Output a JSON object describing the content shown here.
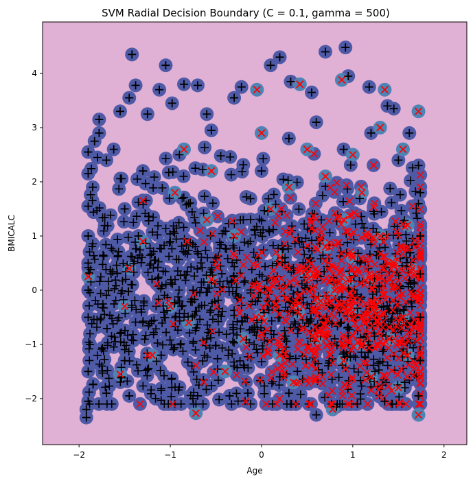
{
  "chart_data": {
    "type": "scatter",
    "title": "SVM Radial Decision Boundary (C = 0.1, gamma = 500)",
    "xlabel": "Age",
    "ylabel": "BMICALC",
    "xlim": [
      -2.4,
      2.25
    ],
    "ylim": [
      -2.85,
      4.95
    ],
    "xticks": [
      -2,
      -1,
      0,
      1,
      2
    ],
    "yticks": [
      -2,
      -1,
      0,
      1,
      2,
      3,
      4
    ],
    "grid": false,
    "legend": "none",
    "colors": {
      "background": "#e0b0d5",
      "support_vector_class_plus": "#4f5aa6",
      "support_vector_class_x": "#4e84b4",
      "marker_plus": "#000000",
      "marker_x": "#ff0000"
    },
    "series": [
      {
        "marker": "plus",
        "points": [
          [
            -1.92,
            -2.35
          ],
          [
            -1.92,
            -2.2
          ],
          [
            -1.9,
            -2.05
          ],
          [
            -1.9,
            -1.5
          ],
          [
            -1.88,
            -1.0
          ],
          [
            -1.9,
            -0.5
          ],
          [
            -1.9,
            0.0
          ],
          [
            -1.9,
            0.5
          ],
          [
            -1.9,
            1.0
          ],
          [
            -1.9,
            1.55
          ],
          [
            -1.9,
            2.15
          ],
          [
            -1.9,
            2.55
          ],
          [
            -1.85,
            1.9
          ],
          [
            -1.83,
            2.75
          ],
          [
            -1.78,
            3.15
          ],
          [
            -1.78,
            2.9
          ],
          [
            -1.7,
            2.4
          ],
          [
            -1.62,
            2.6
          ],
          [
            -1.55,
            3.3
          ],
          [
            -1.45,
            3.55
          ],
          [
            -1.42,
            4.35
          ],
          [
            -1.38,
            3.78
          ],
          [
            -1.25,
            3.25
          ],
          [
            -1.12,
            3.7
          ],
          [
            -1.05,
            4.15
          ],
          [
            -0.98,
            3.45
          ],
          [
            -0.85,
            3.8
          ],
          [
            -0.7,
            3.78
          ],
          [
            -0.6,
            3.25
          ],
          [
            -0.55,
            2.95
          ],
          [
            -0.3,
            3.55
          ],
          [
            -0.22,
            3.75
          ],
          [
            0.1,
            4.15
          ],
          [
            0.2,
            4.3
          ],
          [
            0.32,
            3.85
          ],
          [
            0.55,
            3.65
          ],
          [
            0.7,
            4.4
          ],
          [
            0.92,
            4.48
          ],
          [
            0.95,
            3.95
          ],
          [
            1.18,
            3.75
          ],
          [
            1.38,
            3.4
          ],
          [
            1.45,
            3.35
          ],
          [
            1.62,
            2.9
          ],
          [
            1.72,
            2.3
          ],
          [
            1.74,
            1.8
          ],
          [
            1.74,
            1.0
          ],
          [
            1.74,
            0.3
          ],
          [
            1.74,
            -0.5
          ],
          [
            1.74,
            -1.3
          ],
          [
            1.72,
            -1.95
          ],
          [
            1.35,
            -2.05
          ],
          [
            1.05,
            -2.1
          ],
          [
            0.82,
            -2.15
          ],
          [
            0.6,
            -2.3
          ],
          [
            0.3,
            -1.9
          ],
          [
            -0.15,
            -1.9
          ],
          [
            -0.35,
            -1.95
          ],
          [
            -0.7,
            -1.95
          ],
          [
            -1.1,
            -1.85
          ],
          [
            -1.45,
            -1.95
          ],
          [
            -1.7,
            -1.9
          ],
          [
            -1.5,
            -1.3
          ],
          [
            -1.3,
            -0.6
          ],
          [
            -1.2,
            0.2
          ],
          [
            -1.0,
            0.9
          ],
          [
            -1.5,
            1.5
          ],
          [
            -1.3,
            2.2
          ],
          [
            -0.9,
            2.5
          ],
          [
            -0.8,
            1.6
          ],
          [
            -0.9,
            -0.2
          ],
          [
            -0.6,
            -0.9
          ],
          [
            -0.3,
            -1.4
          ],
          [
            -0.5,
            0.6
          ],
          [
            -0.2,
            1.3
          ],
          [
            0.0,
            2.2
          ],
          [
            0.3,
            2.8
          ],
          [
            0.6,
            3.1
          ],
          [
            0.9,
            2.6
          ],
          [
            1.2,
            2.9
          ],
          [
            1.5,
            2.4
          ],
          [
            -1.65,
            0.3
          ],
          [
            -1.55,
            -0.8
          ],
          [
            -1.75,
            -1.4
          ],
          [
            -1.1,
            -1.2
          ],
          [
            -0.75,
            0.0
          ],
          [
            0.2,
            -1.6
          ],
          [
            -1.35,
            1.0
          ]
        ]
      },
      {
        "marker": "x",
        "points": [
          [
            -0.72,
            -2.27
          ],
          [
            0.78,
            -2.2
          ],
          [
            1.72,
            -2.3
          ],
          [
            -0.05,
            3.7
          ],
          [
            0.42,
            3.8
          ],
          [
            0.88,
            3.88
          ],
          [
            1.35,
            3.7
          ],
          [
            1.72,
            3.3
          ],
          [
            1.55,
            2.6
          ],
          [
            1.3,
            3.0
          ],
          [
            1.0,
            2.5
          ],
          [
            0.7,
            2.1
          ],
          [
            0.3,
            1.9
          ],
          [
            0.1,
            1.5
          ],
          [
            -0.3,
            1.0
          ],
          [
            -0.55,
            0.2
          ],
          [
            -0.8,
            -0.6
          ],
          [
            -1.2,
            -1.2
          ],
          [
            -1.5,
            -0.3
          ],
          [
            -1.9,
            0.25
          ],
          [
            -1.45,
            0.4
          ],
          [
            -0.95,
            1.8
          ],
          [
            -0.55,
            2.2
          ],
          [
            0.0,
            2.9
          ],
          [
            0.5,
            2.6
          ],
          [
            1.6,
            1.2
          ],
          [
            1.65,
            0.4
          ],
          [
            1.55,
            -0.5
          ],
          [
            1.6,
            -1.2
          ],
          [
            1.5,
            -1.8
          ],
          [
            1.2,
            -1.6
          ],
          [
            0.9,
            -1.3
          ],
          [
            0.6,
            -0.9
          ],
          [
            0.4,
            -0.4
          ],
          [
            0.5,
            0.3
          ],
          [
            0.7,
            0.8
          ],
          [
            0.9,
            1.3
          ],
          [
            1.1,
            1.8
          ],
          [
            1.3,
            1.0
          ],
          [
            1.2,
            0.2
          ],
          [
            1.0,
            -0.4
          ],
          [
            0.8,
            0.0
          ],
          [
            1.4,
            -0.9
          ],
          [
            1.1,
            -1.0
          ],
          [
            0.2,
            -1.2
          ],
          [
            0.0,
            -0.5
          ],
          [
            0.2,
            0.6
          ],
          [
            -0.2,
            -0.9
          ],
          [
            -0.4,
            -1.5
          ],
          [
            -1.0,
            -0.3
          ],
          [
            -1.3,
            0.9
          ],
          [
            -1.55,
            -1.55
          ],
          [
            -0.85,
            2.6
          ],
          [
            -0.6,
            1.3
          ],
          [
            0.35,
            -1.7
          ],
          [
            1.0,
            0.6
          ],
          [
            1.45,
            0.5
          ],
          [
            0.65,
            -0.2
          ],
          [
            1.25,
            -0.3
          ],
          [
            0.95,
            0.2
          ]
        ]
      }
    ]
  }
}
